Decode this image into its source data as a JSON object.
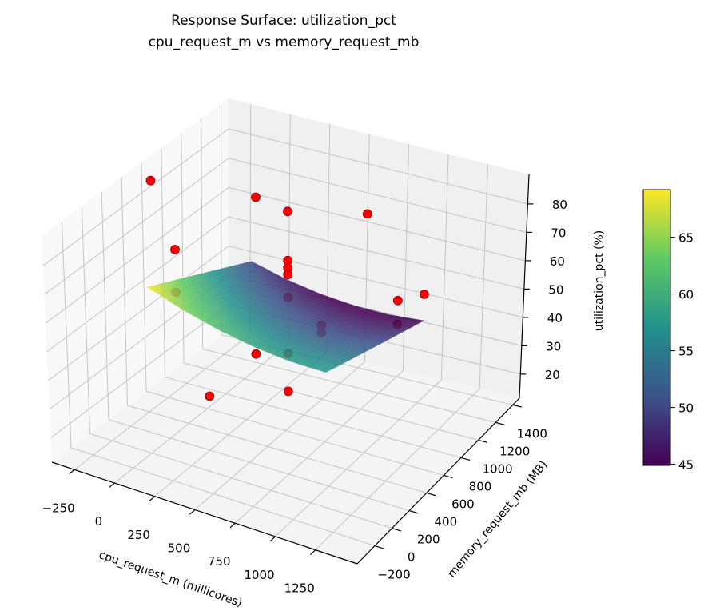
{
  "chart_data": {
    "type": "surface3d+scatter",
    "title": "Response Surface: utilization_pct",
    "subtitle": "cpu_request_m vs memory_request_mb",
    "xlabel": "cpu_request_m (millicores)",
    "ylabel": "memory_request_mb (MB)",
    "zlabel": "utilization_pct (%)",
    "xlim": [
      -390,
      1510
    ],
    "ylim": [
      -404,
      1476
    ],
    "zlim": [
      11.5,
      90.4
    ],
    "xticks": [
      -250,
      0,
      250,
      500,
      750,
      1000,
      1250
    ],
    "yticks": [
      -200,
      0,
      200,
      400,
      600,
      800,
      1000,
      1200,
      1400
    ],
    "zticks": [
      20,
      30,
      40,
      50,
      60,
      70,
      80
    ],
    "grid": true,
    "colorbar": {
      "colormap": "viridis",
      "range": [
        44.9,
        69.2
      ],
      "ticks": [
        45,
        50,
        55,
        60,
        65
      ],
      "placement": "right"
    },
    "surface": {
      "x": [
        0,
        220,
        440,
        660,
        880,
        1100
      ],
      "y": [
        0,
        216,
        432,
        648,
        864,
        1080
      ],
      "z": [
        [
          69.0,
          64.7,
          61.5,
          59.3,
          58.1,
          58.0
        ],
        [
          65.2,
          61.2,
          58.2,
          56.2,
          55.3,
          55.4
        ],
        [
          61.4,
          57.6,
          54.8,
          53.1,
          52.4,
          52.8
        ],
        [
          57.6,
          54.0,
          51.5,
          50.0,
          49.6,
          50.2
        ],
        [
          53.8,
          50.5,
          48.2,
          47.0,
          46.8,
          47.6
        ],
        [
          50.0,
          46.9,
          44.9,
          43.9,
          43.9,
          45.0
        ]
      ]
    },
    "point_color": "#ff0000",
    "points": [
      {
        "x": -300,
        "y": 544,
        "z": 87.0
      },
      {
        "x": 100,
        "y": 128,
        "z": 80.3
      },
      {
        "x": 100,
        "y": 128,
        "z": 65.5
      },
      {
        "x": 550,
        "y": -300,
        "z": 48.7
      },
      {
        "x": 100,
        "y": 960,
        "z": 76.6
      },
      {
        "x": 100,
        "y": 960,
        "z": 22.5
      },
      {
        "x": 550,
        "y": 544,
        "z": 89.6
      },
      {
        "x": 550,
        "y": 544,
        "z": 72.6
      },
      {
        "x": 550,
        "y": 544,
        "z": 70.1
      },
      {
        "x": 550,
        "y": 544,
        "z": 67.8
      },
      {
        "x": 550,
        "y": 544,
        "z": 59.8
      },
      {
        "x": 550,
        "y": 544,
        "z": 40.5
      },
      {
        "x": 550,
        "y": 544,
        "z": 27.4
      },
      {
        "x": 1000,
        "y": 128,
        "z": 68.9
      },
      {
        "x": 1000,
        "y": 128,
        "z": 66.4
      },
      {
        "x": 550,
        "y": 1388,
        "z": 65.8
      },
      {
        "x": 1000,
        "y": 960,
        "z": 54.0
      },
      {
        "x": 1000,
        "y": 960,
        "z": 45.7
      },
      {
        "x": 1400,
        "y": 544,
        "z": 74.2
      }
    ]
  }
}
